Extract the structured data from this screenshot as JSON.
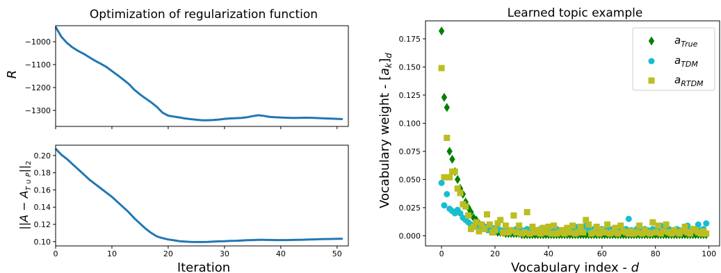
{
  "chart_data": [
    {
      "type": "line",
      "title": "Optimization of regularization function",
      "xlabel": "",
      "ylabel": "R",
      "xlim": [
        0,
        52
      ],
      "ylim": [
        -1370,
        -930
      ],
      "xticks": [
        0,
        10,
        20,
        30,
        40,
        50
      ],
      "yticks": [
        -1300,
        -1200,
        -1100,
        -1000
      ],
      "ytick_labels": [
        "−1300",
        "−1200",
        "−1100",
        "−1000"
      ],
      "color": "#1f77b4",
      "series": [
        {
          "x": [
            0,
            1,
            2,
            3,
            4,
            5,
            6,
            7,
            8,
            9,
            10,
            11,
            12,
            13,
            14,
            15,
            16,
            17,
            18,
            19,
            20,
            21,
            22,
            23,
            24,
            25,
            26,
            27,
            28,
            29,
            30,
            31,
            32,
            33,
            34,
            35,
            36,
            37,
            38,
            39,
            40,
            41,
            42,
            43,
            44,
            45,
            46,
            47,
            48,
            49,
            50,
            51
          ],
          "y": [
            -935,
            -978,
            -1005,
            -1025,
            -1040,
            -1053,
            -1068,
            -1083,
            -1096,
            -1110,
            -1128,
            -1146,
            -1165,
            -1185,
            -1210,
            -1230,
            -1248,
            -1265,
            -1285,
            -1310,
            -1323,
            -1327,
            -1331,
            -1335,
            -1338,
            -1341,
            -1343,
            -1343,
            -1342,
            -1340,
            -1337,
            -1335,
            -1334,
            -1333,
            -1330,
            -1325,
            -1321,
            -1324,
            -1328,
            -1330,
            -1331,
            -1332,
            -1333,
            -1333,
            -1332,
            -1332,
            -1333,
            -1334,
            -1335,
            -1336,
            -1337,
            -1338
          ]
        }
      ]
    },
    {
      "type": "line",
      "title": "",
      "xlabel": "Iteration",
      "ylabel": "||A − A_T∪P||₂",
      "ylabel_main": "||A − A",
      "ylabel_sub": "T ∪ P",
      "ylabel_tail": "||",
      "ylabel_tail_sub": "2",
      "xlim": [
        0,
        52
      ],
      "ylim": [
        0.095,
        0.212
      ],
      "xticks": [
        0,
        10,
        20,
        30,
        40,
        50
      ],
      "xtick_labels": [
        "0",
        "10",
        "20",
        "30",
        "40",
        "50"
      ],
      "yticks": [
        0.1,
        0.12,
        0.14,
        0.16,
        0.18,
        0.2
      ],
      "ytick_labels": [
        "0.10",
        "0.12",
        "0.14",
        "0.16",
        "0.18",
        "0.20"
      ],
      "color": "#1f77b4",
      "series": [
        {
          "x": [
            0,
            1,
            2,
            3,
            4,
            5,
            6,
            7,
            8,
            9,
            10,
            11,
            12,
            13,
            14,
            15,
            16,
            17,
            18,
            19,
            20,
            21,
            22,
            23,
            24,
            25,
            26,
            27,
            28,
            29,
            30,
            31,
            32,
            33,
            34,
            35,
            36,
            37,
            38,
            39,
            40,
            41,
            42,
            43,
            44,
            45,
            46,
            47,
            48,
            49,
            50,
            51
          ],
          "y": [
            0.208,
            0.201,
            0.196,
            0.19,
            0.184,
            0.178,
            0.172,
            0.167,
            0.162,
            0.157,
            0.152,
            0.146,
            0.14,
            0.134,
            0.127,
            0.121,
            0.115,
            0.11,
            0.106,
            0.104,
            0.1025,
            0.1015,
            0.1005,
            0.1,
            0.0997,
            0.0995,
            0.0995,
            0.0997,
            0.1,
            0.1003,
            0.1005,
            0.1008,
            0.101,
            0.1013,
            0.1016,
            0.1018,
            0.102,
            0.102,
            0.1019,
            0.1018,
            0.1018,
            0.1018,
            0.1019,
            0.102,
            0.1022,
            0.1024,
            0.1026,
            0.1028,
            0.103,
            0.1031,
            0.1032,
            0.1033
          ]
        }
      ]
    },
    {
      "type": "scatter",
      "title": "Learned topic example",
      "xlabel": "Vocabulary index - d",
      "xlabel_main": "Vocabulary index - ",
      "xlabel_var": "d",
      "ylabel": "Vocabulary weight - [a_k]_d",
      "ylabel_main": "Vocabulary weight - [",
      "ylabel_a": "a",
      "ylabel_k": "k",
      "ylabel_close": "]",
      "ylabel_d": "d",
      "xlim": [
        -6,
        104
      ],
      "ylim": [
        -0.009,
        0.191
      ],
      "xticks": [
        0,
        20,
        40,
        60,
        80,
        100
      ],
      "xtick_labels": [
        "0",
        "20",
        "40",
        "60",
        "80",
        "100"
      ],
      "yticks": [
        0.0,
        0.025,
        0.05,
        0.075,
        0.1,
        0.125,
        0.15,
        0.175
      ],
      "ytick_labels": [
        "0.000",
        "0.025",
        "0.050",
        "0.075",
        "0.100",
        "0.125",
        "0.150",
        "0.175"
      ],
      "legend_position": "top-right",
      "series": [
        {
          "name": "a_True",
          "legend_base": "a",
          "legend_sub": "True",
          "marker": "diamond",
          "color": "#008000",
          "x": [
            0,
            1,
            2,
            3,
            4,
            5,
            6,
            7,
            8,
            9,
            10,
            11,
            12,
            13,
            14,
            15,
            16,
            17,
            18,
            19,
            20,
            21,
            22,
            23,
            24,
            25,
            26,
            27,
            28,
            29,
            30,
            31,
            32,
            33,
            34,
            35,
            36,
            37,
            38,
            39,
            40,
            41,
            42,
            43,
            44,
            45,
            46,
            47,
            48,
            49,
            50,
            51,
            52,
            53,
            54,
            55,
            56,
            57,
            58,
            59,
            60,
            61,
            62,
            63,
            64,
            65,
            66,
            67,
            68,
            69,
            70,
            71,
            72,
            73,
            74,
            75,
            76,
            77,
            78,
            79,
            80,
            81,
            82,
            83,
            84,
            85,
            86,
            87,
            88,
            89,
            90,
            91,
            92,
            93,
            94,
            95,
            96,
            97,
            98,
            99
          ],
          "y": [
            0.182,
            0.123,
            0.114,
            0.075,
            0.068,
            0.057,
            0.05,
            0.042,
            0.037,
            0.03,
            0.025,
            0.021,
            0.016,
            0.014,
            0.011,
            0.009,
            0.008,
            0.006,
            0.005,
            0.004,
            0.004,
            0.003,
            0.003,
            0.003,
            0.002,
            0.002,
            0.002,
            0.002,
            0.002,
            0.002,
            0.001,
            0.001,
            0.001,
            0.001,
            0.001,
            0.001,
            0.001,
            0.001,
            0.001,
            0.001,
            0.001,
            0.001,
            0.001,
            0.001,
            0.001,
            0.001,
            0.001,
            0.001,
            0.001,
            0.001,
            0.001,
            0.001,
            0.001,
            0.001,
            0.001,
            0.001,
            0.001,
            0.001,
            0.001,
            0.001,
            0.001,
            0.001,
            0.001,
            0.001,
            0.001,
            0.001,
            0.001,
            0.001,
            0.001,
            0.001,
            0.001,
            0.001,
            0.001,
            0.001,
            0.001,
            0.001,
            0.001,
            0.001,
            0.001,
            0.001,
            0.001,
            0.001,
            0.001,
            0.001,
            0.001,
            0.001,
            0.001,
            0.001,
            0.001,
            0.001,
            0.001,
            0.001,
            0.001,
            0.001,
            0.001,
            0.001,
            0.001,
            0.001,
            0.001,
            0.001
          ]
        },
        {
          "name": "a_TDM",
          "legend_base": "a",
          "legend_sub": "TDM",
          "marker": "circle",
          "color": "#17becf",
          "x": [
            0,
            1,
            2,
            3,
            4,
            5,
            6,
            7,
            8,
            9,
            10,
            11,
            12,
            13,
            14,
            15,
            16,
            17,
            18,
            19,
            20,
            21,
            22,
            23,
            24,
            25,
            26,
            27,
            28,
            29,
            30,
            31,
            32,
            33,
            34,
            35,
            36,
            37,
            38,
            39,
            40,
            41,
            42,
            43,
            44,
            45,
            46,
            47,
            48,
            49,
            50,
            51,
            52,
            53,
            54,
            55,
            56,
            57,
            58,
            59,
            60,
            61,
            62,
            63,
            64,
            65,
            66,
            67,
            68,
            69,
            70,
            71,
            72,
            73,
            74,
            75,
            76,
            77,
            78,
            79,
            80,
            81,
            82,
            83,
            84,
            85,
            86,
            87,
            88,
            89,
            90,
            91,
            92,
            93,
            94,
            95,
            96,
            97,
            98,
            99
          ],
          "y": [
            0.047,
            0.027,
            0.037,
            0.024,
            0.022,
            0.02,
            0.023,
            0.02,
            0.016,
            0.014,
            0.012,
            0.01,
            0.009,
            0.008,
            0.01,
            0.007,
            0.006,
            0.008,
            0.005,
            0.007,
            0.004,
            0.006,
            0.005,
            0.004,
            0.006,
            0.005,
            0.004,
            0.005,
            0.006,
            0.004,
            0.005,
            0.003,
            0.006,
            0.005,
            0.004,
            0.005,
            0.004,
            0.006,
            0.005,
            0.004,
            0.005,
            0.008,
            0.004,
            0.006,
            0.005,
            0.004,
            0.005,
            0.006,
            0.004,
            0.005,
            0.008,
            0.004,
            0.006,
            0.005,
            0.009,
            0.005,
            0.004,
            0.006,
            0.005,
            0.004,
            0.006,
            0.005,
            0.004,
            0.006,
            0.005,
            0.004,
            0.007,
            0.005,
            0.004,
            0.006,
            0.015,
            0.005,
            0.004,
            0.006,
            0.005,
            0.004,
            0.006,
            0.005,
            0.004,
            0.006,
            0.005,
            0.004,
            0.009,
            0.005,
            0.004,
            0.006,
            0.005,
            0.004,
            0.006,
            0.005,
            0.004,
            0.006,
            0.009,
            0.005,
            0.006,
            0.004,
            0.01,
            0.005,
            0.006,
            0.011
          ]
        },
        {
          "name": "a_RTDM",
          "legend_base": "a",
          "legend_sub": "RTDM",
          "marker": "square",
          "color": "#bcbd22",
          "x": [
            0,
            1,
            2,
            3,
            4,
            5,
            6,
            7,
            8,
            9,
            10,
            11,
            12,
            13,
            14,
            15,
            16,
            17,
            18,
            19,
            20,
            21,
            22,
            23,
            24,
            25,
            26,
            27,
            28,
            29,
            30,
            31,
            32,
            33,
            34,
            35,
            36,
            37,
            38,
            39,
            40,
            41,
            42,
            43,
            44,
            45,
            46,
            47,
            48,
            49,
            50,
            51,
            52,
            53,
            54,
            55,
            56,
            57,
            58,
            59,
            60,
            61,
            62,
            63,
            64,
            65,
            66,
            67,
            68,
            69,
            70,
            71,
            72,
            73,
            74,
            75,
            76,
            77,
            78,
            79,
            80,
            81,
            82,
            83,
            84,
            85,
            86,
            87,
            88,
            89,
            90,
            91,
            92,
            93,
            94,
            95,
            96,
            97,
            98,
            99
          ],
          "y": [
            0.149,
            0.052,
            0.087,
            0.052,
            0.057,
            0.057,
            0.042,
            0.038,
            0.028,
            0.026,
            0.018,
            0.006,
            0.008,
            0.012,
            0.004,
            0.01,
            0.006,
            0.019,
            0.01,
            0.003,
            0.005,
            0.011,
            0.014,
            0.003,
            0.009,
            0.003,
            0.005,
            0.018,
            0.003,
            0.009,
            0.002,
            0.003,
            0.021,
            0.002,
            0.008,
            0.003,
            0.005,
            0.002,
            0.007,
            0.003,
            0.008,
            0.002,
            0.009,
            0.002,
            0.003,
            0.005,
            0.002,
            0.007,
            0.003,
            0.009,
            0.002,
            0.003,
            0.008,
            0.003,
            0.014,
            0.01,
            0.002,
            0.003,
            0.008,
            0.002,
            0.005,
            0.003,
            0.01,
            0.002,
            0.003,
            0.007,
            0.002,
            0.009,
            0.004,
            0.003,
            0.002,
            0.004,
            0.002,
            0.003,
            0.009,
            0.002,
            0.005,
            0.003,
            0.002,
            0.012,
            0.003,
            0.009,
            0.002,
            0.004,
            0.01,
            0.003,
            0.002,
            0.005,
            0.003,
            0.002,
            0.004,
            0.008,
            0.003,
            0.002,
            0.006,
            0.005,
            0.003,
            0.002,
            0.004,
            0.002
          ]
        }
      ]
    }
  ]
}
